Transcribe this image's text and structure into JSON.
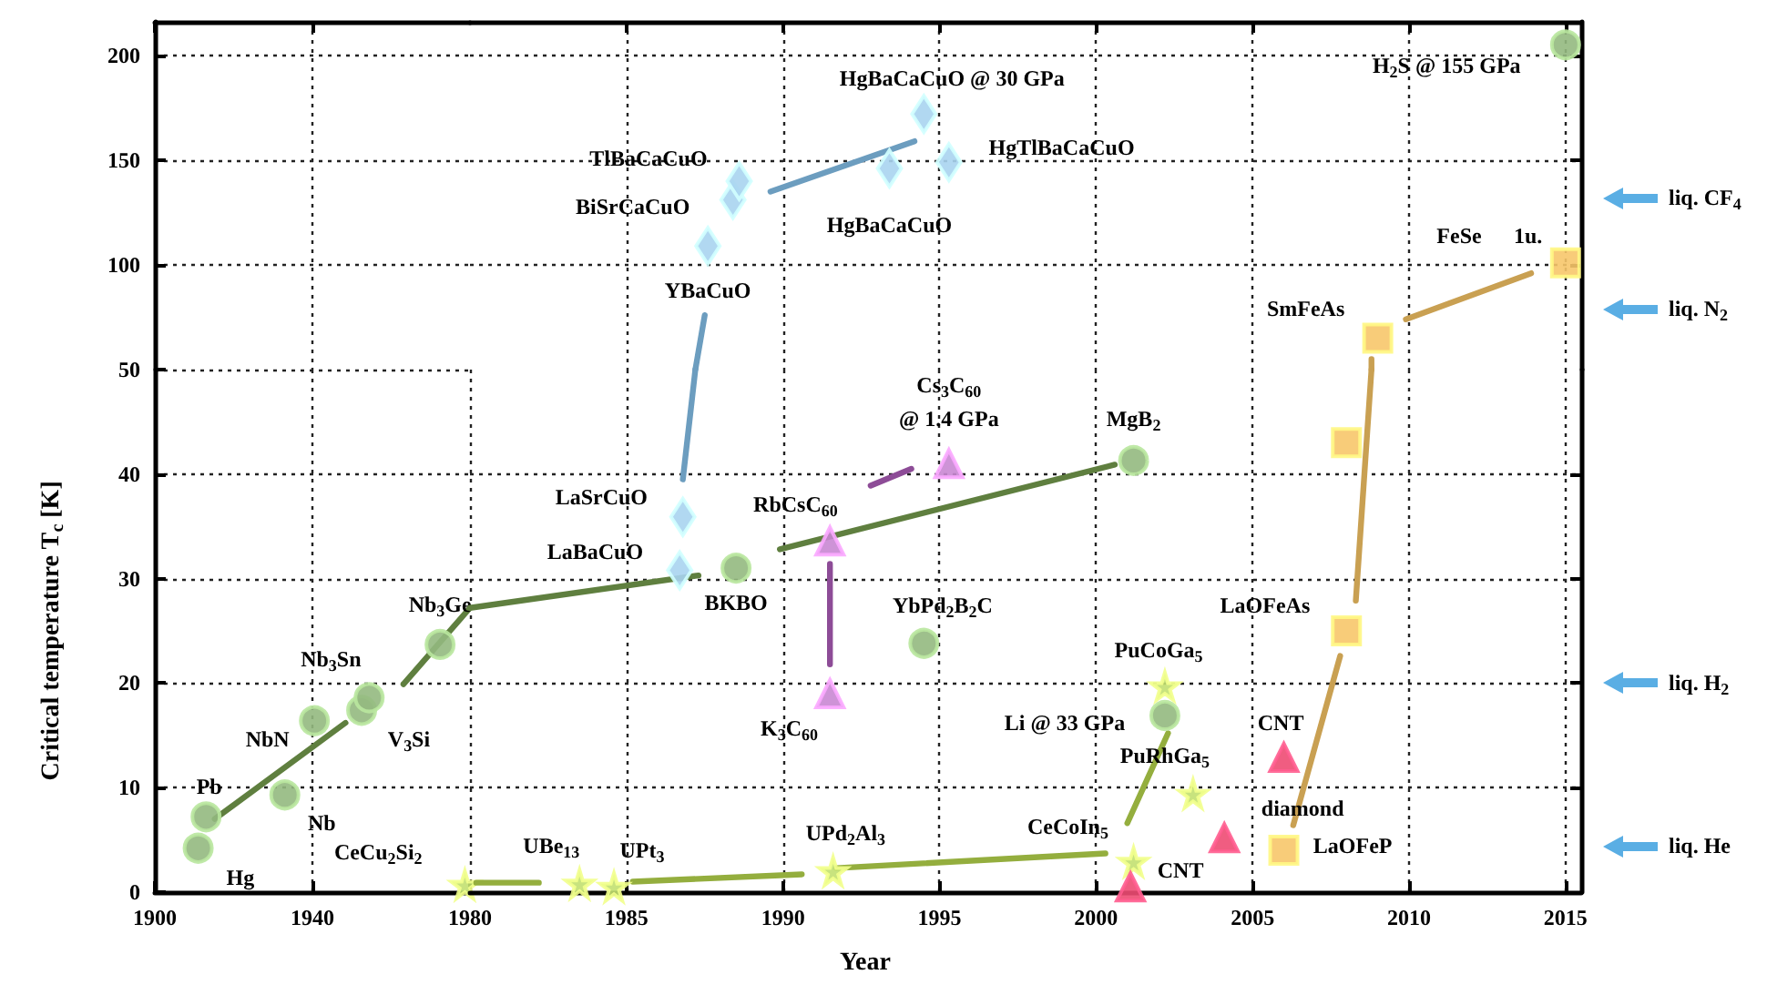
{
  "chart_data": [
    {
      "type": "scatter",
      "xlim": [
        1900,
        1980
      ],
      "xticks": [
        1900,
        1940
      ],
      "ylim": [
        50,
        216
      ],
      "yticks": [
        100,
        150,
        200
      ],
      "tick_labels": "y",
      "grid": true
    },
    {
      "type": "scatter",
      "xlim": [
        1980,
        2015.5
      ],
      "xticks": [
        1985,
        1990,
        1995,
        2000,
        2005,
        2010,
        2015
      ],
      "ylim": [
        50,
        216
      ],
      "yticks": [
        100,
        150,
        200
      ],
      "tick_labels": false,
      "grid": true,
      "series": [
        {
          "type": "line",
          "marker": "none",
          "color": "#6c9dbf",
          "x": [
            1987.2,
            1987.5
          ],
          "values": [
            50,
            76
          ]
        },
        {
          "type": "line",
          "marker": "none",
          "color": "#6c9dbf",
          "x": [
            1989.6,
            1994.2
          ],
          "values": [
            135,
            159
          ]
        },
        {
          "type": "line",
          "marker": "none",
          "color": "#c9a052",
          "x": [
            2008.8,
            2008.8
          ],
          "values": [
            50,
            55
          ]
        },
        {
          "type": "line",
          "marker": "none",
          "color": "#c9a052",
          "x": [
            2009.9,
            2013.9
          ],
          "values": [
            74,
            96
          ]
        },
        {
          "marker": "circle",
          "color": "#94b97f",
          "x": [
            2015
          ],
          "values": [
            205
          ]
        },
        {
          "marker": "diamond",
          "color": "#a8d4f0",
          "x": [
            1987.6,
            1988.4,
            1988.6,
            1993.4,
            1994.5,
            1995.3
          ],
          "values": [
            109,
            131,
            140,
            146,
            172,
            149
          ]
        },
        {
          "marker": "square",
          "color": "#f7c66a",
          "x": [
            2009,
            2015
          ],
          "values": [
            65,
            101
          ]
        }
      ],
      "annotations": [
        "HgBaCaCuO @ 30 GPa",
        "TlBaCaCuO",
        "BiSrCaCuO",
        "YBaCuO",
        "HgBaCaCuO",
        "HgTlBaCaCuO",
        "H$_{2}$S @ 155 GPa",
        "SmFeAs",
        "FeSe",
        "1u.",
        "liq. N$_{2}$",
        "liq. CF$_{4}$"
      ]
    },
    {
      "type": "scatter",
      "xlim": [
        1900,
        1980
      ],
      "xticks": [
        1900,
        1940,
        1980
      ],
      "ylim": [
        0,
        50
      ],
      "yticks": [
        0,
        10,
        20,
        30,
        40,
        50
      ],
      "grid": true,
      "ylabel": "Critical temperature T$_{c}$ [K]",
      "series": [
        {
          "type": "line",
          "marker": "none",
          "color": "#5f7f3f",
          "x": [
            1915.2,
            1948.4
          ],
          "values": [
            7,
            16.2
          ]
        },
        {
          "type": "line",
          "marker": "none",
          "color": "#5f7f3f",
          "x": [
            1963.1,
            1980
          ],
          "values": [
            19.9,
            27.2
          ]
        },
        {
          "marker": "circle",
          "color": "#94b97f",
          "x": [
            1911,
            1913,
            1933,
            1940.5,
            1952.5,
            1954.4,
            1972.4
          ],
          "values": [
            4.2,
            7.2,
            9.3,
            16.4,
            17.4,
            18.6,
            23.7
          ]
        },
        {
          "marker": "star",
          "color": "#c2e070",
          "x": [
            1978.7
          ],
          "values": [
            0.7
          ]
        }
      ],
      "annotations": [
        "Hg",
        "Pb",
        "Nb",
        "NbN",
        "Nb$_{3}$Sn",
        "V$_{3}$Si",
        "Nb$_{3}$Ge",
        "CeCu$_{2}$Si$_{2}$"
      ]
    },
    {
      "type": "scatter",
      "xlim": [
        1980,
        2015.5
      ],
      "xticks": [
        1985,
        1990,
        1995,
        2000,
        2005,
        2010,
        2015
      ],
      "ylim": [
        0,
        50
      ],
      "yticks": [
        10,
        20,
        30,
        40
      ],
      "tick_labels": "x",
      "grid": true,
      "xlabel": "Year",
      "series": [
        {
          "type": "line",
          "marker": "none",
          "color": "#5f7f3f",
          "x": [
            1980,
            1987.3
          ],
          "values": [
            27.2,
            30.3
          ]
        },
        {
          "type": "line",
          "marker": "none",
          "color": "#5f7f3f",
          "x": [
            1989.9,
            2000.6
          ],
          "values": [
            32.8,
            40.9
          ]
        },
        {
          "type": "line",
          "marker": "none",
          "color": "#6c9dbf",
          "x": [
            1986.8,
            1987.2
          ],
          "values": [
            39.5,
            50
          ]
        },
        {
          "type": "line",
          "marker": "none",
          "color": "#8d4c97",
          "x": [
            1991.5,
            1991.5
          ],
          "values": [
            31.4,
            21.8
          ]
        },
        {
          "type": "line",
          "marker": "none",
          "color": "#8d4c97",
          "x": [
            1992.8,
            1994.1
          ],
          "values": [
            38.9,
            40.5
          ]
        },
        {
          "type": "line",
          "marker": "none",
          "color": "#94ae3e",
          "x": [
            1980.2,
            1982.2
          ],
          "values": [
            0.9,
            0.9
          ]
        },
        {
          "type": "line",
          "marker": "none",
          "color": "#94ae3e",
          "x": [
            1985.2,
            1990.6
          ],
          "values": [
            1,
            1.7
          ]
        },
        {
          "type": "line",
          "marker": "none",
          "color": "#94ae3e",
          "x": [
            1991.7,
            2000.3
          ],
          "values": [
            2.3,
            3.7
          ]
        },
        {
          "type": "line",
          "marker": "none",
          "color": "#94ae3e",
          "x": [
            2001,
            2002.3
          ],
          "values": [
            6.6,
            15.2
          ]
        },
        {
          "type": "line",
          "marker": "none",
          "color": "#c9a052",
          "x": [
            2006.3,
            2007.8
          ],
          "values": [
            6.4,
            22.6
          ]
        },
        {
          "type": "line",
          "marker": "none",
          "color": "#c9a052",
          "x": [
            2008.3,
            2008.8
          ],
          "values": [
            27.9,
            50
          ]
        },
        {
          "marker": "circle",
          "color": "#94b97f",
          "x": [
            1988.5,
            1994.5,
            2001.2,
            2002.2
          ],
          "values": [
            31,
            23.8,
            41.3,
            16.9
          ]
        },
        {
          "marker": "diamond",
          "color": "#a8d4f0",
          "x": [
            1986.7,
            1986.8
          ],
          "values": [
            30.8,
            35.9
          ]
        },
        {
          "marker": "triangle",
          "color": "#c987d3",
          "x": [
            1991.5,
            1991.5,
            1995.3
          ],
          "values": [
            19,
            33.6,
            41
          ]
        },
        {
          "marker": "star",
          "color": "#c2e070",
          "x": [
            1983.5,
            1984.6,
            1991.6,
            2001.2,
            2002.2,
            2003.1
          ],
          "values": [
            0.8,
            0.5,
            2,
            2.9,
            19.7,
            9.4
          ]
        },
        {
          "marker": "triangle",
          "color": "#ee4b73",
          "x": [
            2001.1,
            2004.1,
            2006
          ],
          "values": [
            0.5,
            5.2,
            12.9
          ]
        },
        {
          "marker": "square",
          "color": "#f7c66a",
          "x": [
            2006,
            2008,
            2008
          ],
          "values": [
            4,
            25,
            43
          ]
        }
      ],
      "annotations": [
        "UBe$_{13}$",
        "UPt$_{3}$",
        "UPd$_{2}$Al$_{3}$",
        "BKBO",
        "LaBaCuO",
        "LaSrCuO",
        "RbCsC$_{60}$",
        "K$_{3}$C$_{60}$",
        "YbPd$_{2}$B$_{2}$C",
        "Cs$_{3}$C$_{60}$",
        "@ 1.4 GPa",
        "MgB$_{2}$",
        "PuCoGa$_{5}$",
        "Li @ 33 GPa",
        "PuRhGa$_{5}$",
        "CNT",
        "diamond",
        "CeCoIn$_{5}$",
        "CNT",
        "LaOFeP",
        "LaOFeAs",
        "liq. He",
        "liq. H$_{2}$"
      ]
    }
  ]
}
